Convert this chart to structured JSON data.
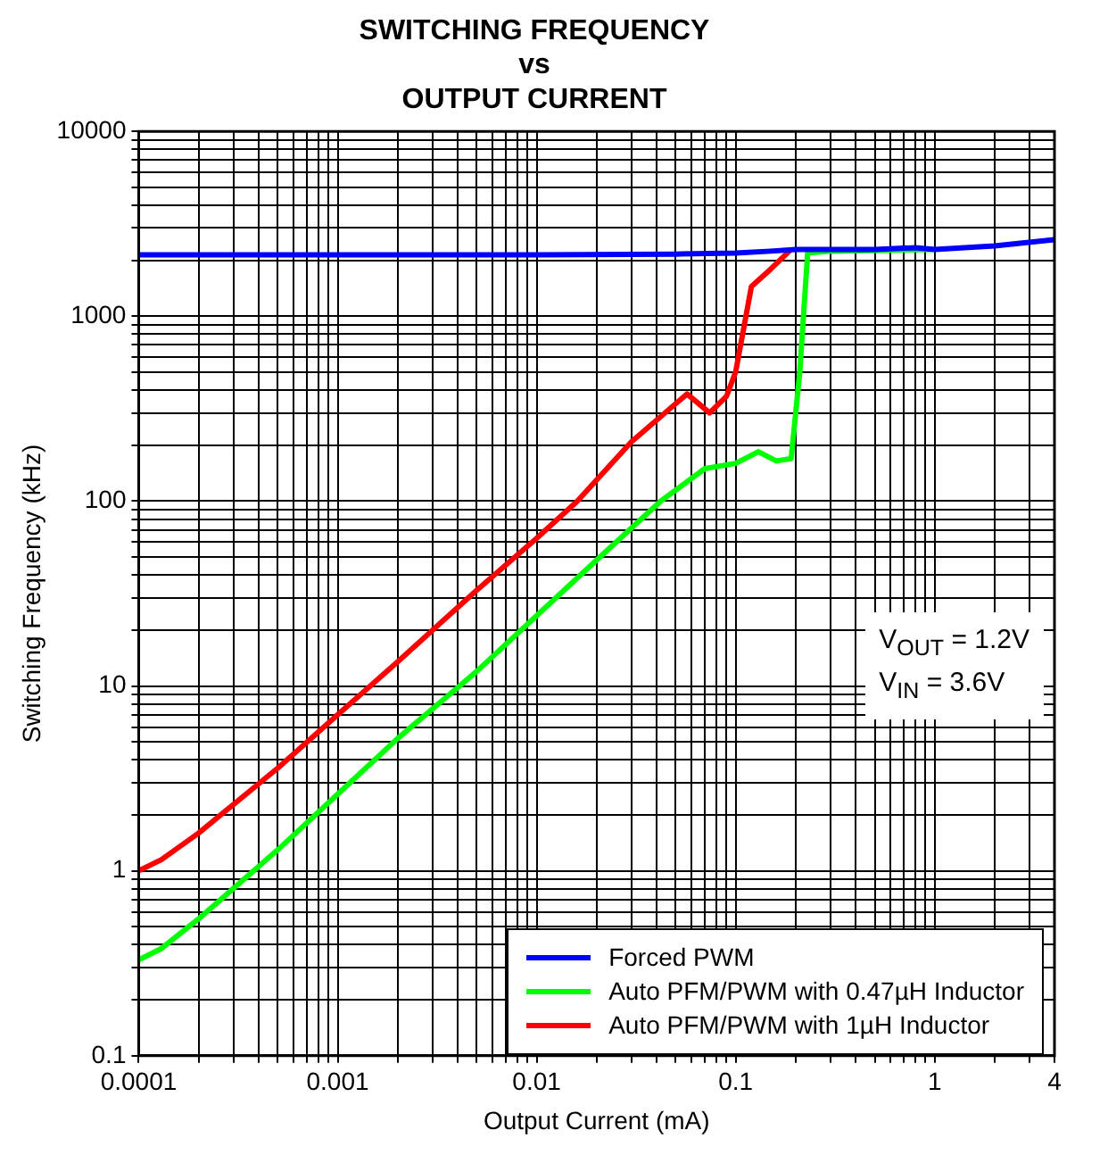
{
  "chart_data": {
    "type": "line",
    "title": "SWITCHING FREQUENCY\nvs\nOUTPUT CURRENT",
    "xlabel": "Output Current (mA)",
    "ylabel": "Switching Frequency (kHz)",
    "log": "xy",
    "grid": true,
    "legend": "bottom right",
    "marker": "none",
    "line_style": "solid",
    "xlim": [
      0.0001,
      4
    ],
    "ylim": [
      0.1,
      10000
    ],
    "xticks": [
      0.0001,
      {
        "value": 0.0002,
        "label": null
      },
      {
        "value": 0.0003,
        "label": null
      },
      {
        "value": 0.0004,
        "label": null
      },
      {
        "value": 0.0005,
        "label": null
      },
      {
        "value": 0.0006,
        "label": null
      },
      {
        "value": 0.0007,
        "label": null
      },
      {
        "value": 0.0008,
        "label": null
      },
      {
        "value": 0.0009,
        "label": null
      },
      0.001,
      {
        "value": 0.002,
        "label": null
      },
      {
        "value": 0.003,
        "label": null
      },
      {
        "value": 0.004,
        "label": null
      },
      {
        "value": 0.005,
        "label": null
      },
      {
        "value": 0.006,
        "label": null
      },
      {
        "value": 0.007,
        "label": null
      },
      {
        "value": 0.008,
        "label": null
      },
      {
        "value": 0.009,
        "label": null
      },
      0.01,
      {
        "value": 0.02,
        "label": null
      },
      {
        "value": 0.03,
        "label": null
      },
      {
        "value": 0.04,
        "label": null
      },
      {
        "value": 0.05,
        "label": null
      },
      {
        "value": 0.06,
        "label": null
      },
      {
        "value": 0.07,
        "label": null
      },
      {
        "value": 0.08,
        "label": null
      },
      {
        "value": 0.09,
        "label": null
      },
      0.1,
      {
        "value": 0.2,
        "label": null
      },
      {
        "value": 0.3,
        "label": null
      },
      {
        "value": 0.4,
        "label": null
      },
      {
        "value": 0.5,
        "label": null
      },
      {
        "value": 0.6,
        "label": null
      },
      {
        "value": 0.7,
        "label": null
      },
      {
        "value": 0.8,
        "label": null
      },
      {
        "value": 0.9,
        "label": null
      },
      1,
      {
        "value": 2,
        "label": null
      },
      {
        "value": 3,
        "label": null
      },
      4
    ],
    "yticks": [
      0.1,
      {
        "value": 0.2,
        "label": null
      },
      {
        "value": 0.3,
        "label": null
      },
      {
        "value": 0.4,
        "label": null
      },
      {
        "value": 0.5,
        "label": null
      },
      {
        "value": 0.6,
        "label": null
      },
      {
        "value": 0.7,
        "label": null
      },
      {
        "value": 0.8,
        "label": null
      },
      {
        "value": 0.9,
        "label": null
      },
      1,
      {
        "value": 2,
        "label": null
      },
      {
        "value": 3,
        "label": null
      },
      {
        "value": 4,
        "label": null
      },
      {
        "value": 5,
        "label": null
      },
      {
        "value": 6,
        "label": null
      },
      {
        "value": 7,
        "label": null
      },
      {
        "value": 8,
        "label": null
      },
      {
        "value": 9,
        "label": null
      },
      10,
      {
        "value": 20,
        "label": null
      },
      {
        "value": 30,
        "label": null
      },
      {
        "value": 40,
        "label": null
      },
      {
        "value": 50,
        "label": null
      },
      {
        "value": 60,
        "label": null
      },
      {
        "value": 70,
        "label": null
      },
      {
        "value": 80,
        "label": null
      },
      {
        "value": 90,
        "label": null
      },
      100,
      {
        "value": 200,
        "label": null
      },
      {
        "value": 300,
        "label": null
      },
      {
        "value": 400,
        "label": null
      },
      {
        "value": 500,
        "label": null
      },
      {
        "value": 600,
        "label": null
      },
      {
        "value": 700,
        "label": null
      },
      {
        "value": 800,
        "label": null
      },
      {
        "value": 900,
        "label": null
      },
      1000,
      {
        "value": 2000,
        "label": null
      },
      {
        "value": 3000,
        "label": null
      },
      {
        "value": 4000,
        "label": null
      },
      {
        "value": 5000,
        "label": null
      },
      {
        "value": 6000,
        "label": null
      },
      {
        "value": 7000,
        "label": null
      },
      {
        "value": 8000,
        "label": null
      },
      {
        "value": 9000,
        "label": null
      },
      10000
    ],
    "series": [
      {
        "name": "Forced PWM",
        "color": "#0000ff",
        "x": [
          0.0001,
          0.001,
          0.01,
          0.05,
          0.1,
          0.15,
          0.2,
          0.5,
          0.8,
          1,
          2,
          4
        ],
        "values": [
          2150,
          2150,
          2150,
          2170,
          2200,
          2250,
          2300,
          2300,
          2350,
          2300,
          2400,
          2600
        ]
      },
      {
        "name": "Auto PFM/PWM with 0.47µH Inductor",
        "color": "#00ff00",
        "x": [
          0.0001,
          0.00013,
          0.0002,
          0.0005,
          0.001,
          0.002,
          0.005,
          0.01,
          0.02,
          0.042,
          0.07,
          0.1,
          0.13,
          0.16,
          0.19,
          0.21,
          0.23,
          0.3,
          1
        ],
        "values": [
          0.33,
          0.38,
          0.55,
          1.3,
          2.6,
          5.2,
          12,
          24,
          48,
          100,
          150,
          160,
          185,
          165,
          170,
          500,
          2200,
          2250,
          2300
        ]
      },
      {
        "name": "Auto PFM/PWM with 1µH Inductor",
        "color": "#ff0000",
        "x": [
          0.0001,
          0.00013,
          0.0002,
          0.0005,
          0.001,
          0.002,
          0.005,
          0.01,
          0.016,
          0.03,
          0.057,
          0.074,
          0.09,
          0.1,
          0.12,
          0.15,
          0.19
        ],
        "values": [
          1,
          1.15,
          1.6,
          3.6,
          7,
          13.5,
          33,
          63,
          100,
          210,
          380,
          300,
          370,
          500,
          1450,
          1800,
          2300
        ]
      }
    ],
    "annotations": [
      "V$_{OUT}$ = 1.2V",
      "V$_{IN}$ = 3.6V"
    ]
  }
}
